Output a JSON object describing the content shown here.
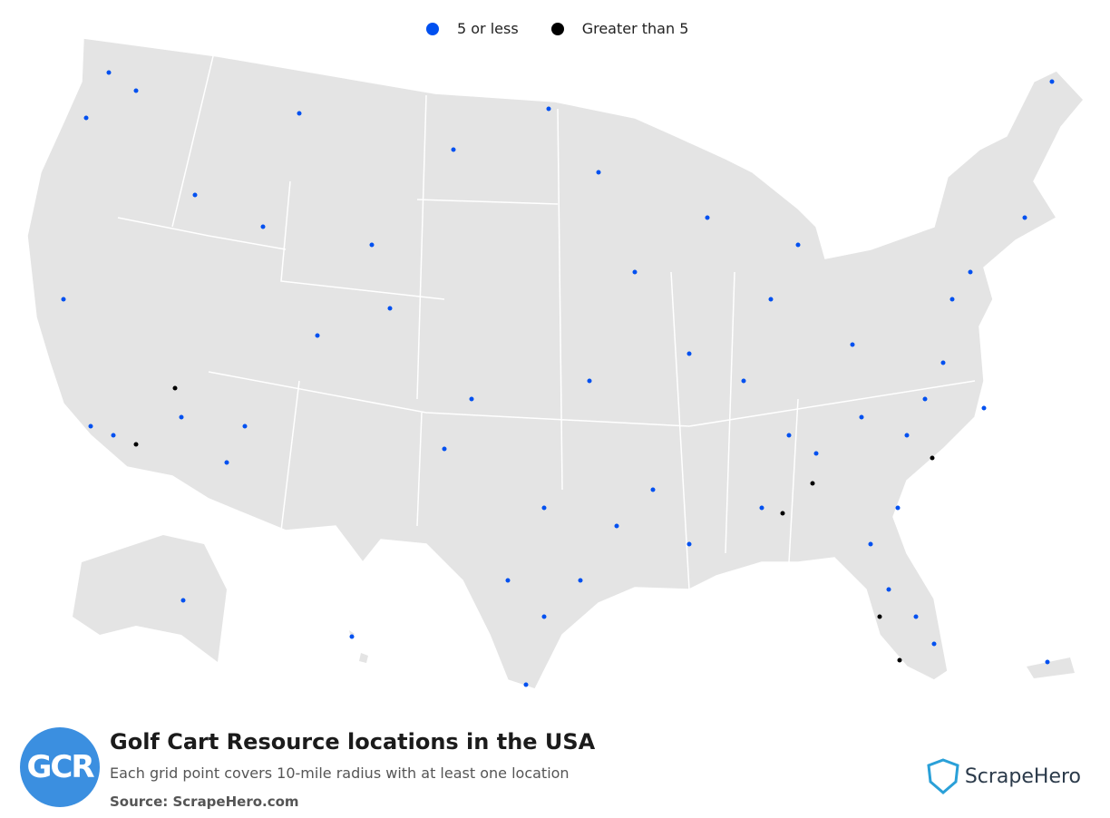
{
  "legend": [
    {
      "label": "5 or less",
      "color": "#0050f0"
    },
    {
      "label": "Greater than 5",
      "color": "#000000"
    }
  ],
  "title": "Golf Cart Resource locations in the USA",
  "subtitle": "Each grid point covers 10-mile radius with at least one location",
  "source": "Source: ScrapeHero.com",
  "logo": "GCR",
  "brand": "ScrapeHero"
}
